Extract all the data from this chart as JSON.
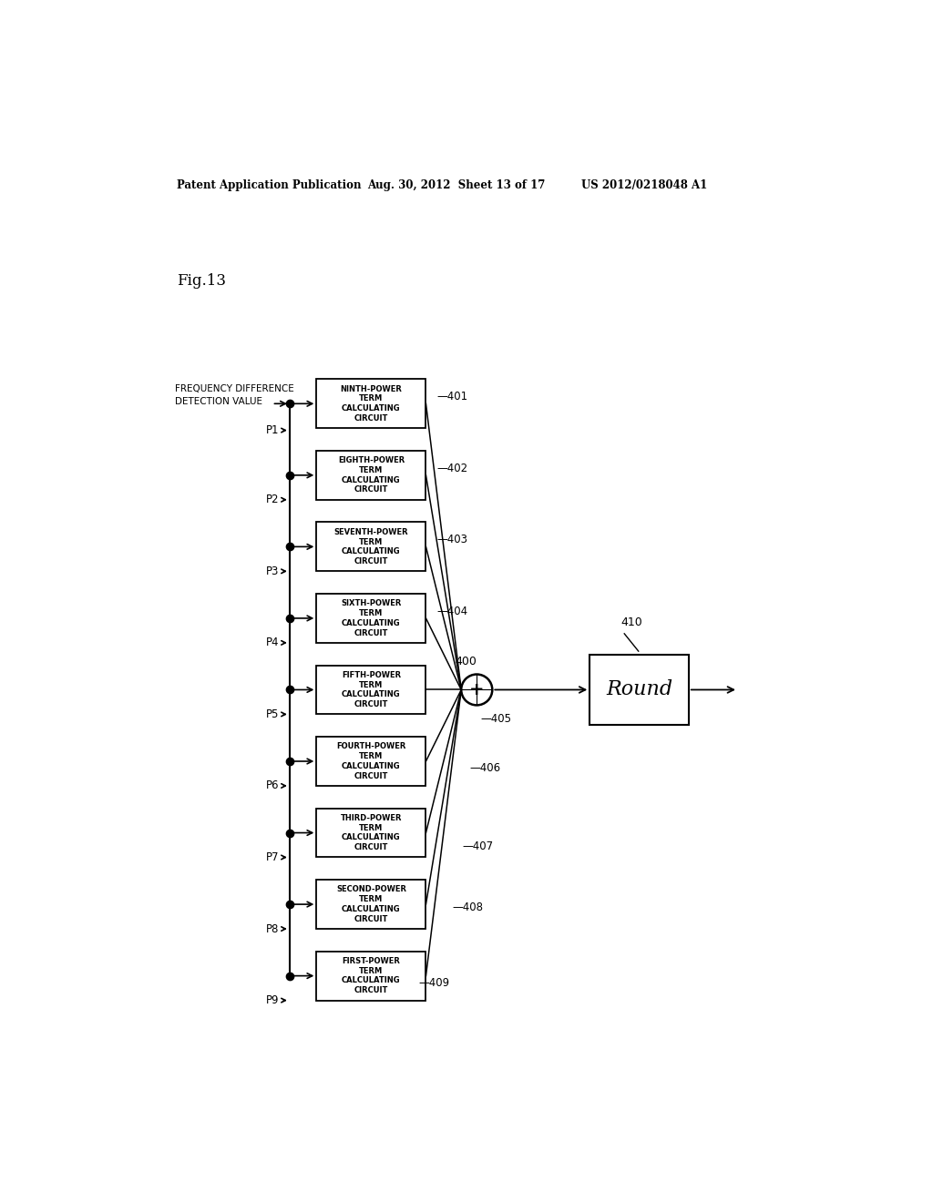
{
  "title_line1": "Patent Application Publication",
  "title_line2": "Aug. 30, 2012  Sheet 13 of 17",
  "title_line3": "US 2012/0218048 A1",
  "fig_label": "Fig.13",
  "background_color": "#ffffff",
  "boxes": [
    {
      "label": "NINTH-POWER\nTERM\nCALCULATING\nCIRCUIT"
    },
    {
      "label": "EIGHTH-POWER\nTERM\nCALCULATING\nCIRCUIT"
    },
    {
      "label": "SEVENTH-POWER\nTERM\nCALCULATING\nCIRCUIT"
    },
    {
      "label": "SIXTH-POWER\nTERM\nCALCULATING\nCIRCUIT"
    },
    {
      "label": "FIFTH-POWER\nTERM\nCALCULATING\nCIRCUIT"
    },
    {
      "label": "FOURTH-POWER\nTERM\nCALCULATING\nCIRCUIT"
    },
    {
      "label": "THIRD-POWER\nTERM\nCALCULATING\nCIRCUIT"
    },
    {
      "label": "SECOND-POWER\nTERM\nCALCULATING\nCIRCUIT"
    },
    {
      "label": "FIRST-POWER\nTERM\nCALCULATING\nCIRCUIT"
    }
  ],
  "params": [
    "P1",
    "P2",
    "P3",
    "P4",
    "P5",
    "P6",
    "P7",
    "P8",
    "P9"
  ],
  "ref_nums_top": [
    "401",
    "402",
    "403",
    "404"
  ],
  "ref_nums_bottom": [
    "405",
    "406",
    "407",
    "408",
    "409"
  ],
  "sum_label": "400",
  "round_label": "Round",
  "round_number": "410"
}
